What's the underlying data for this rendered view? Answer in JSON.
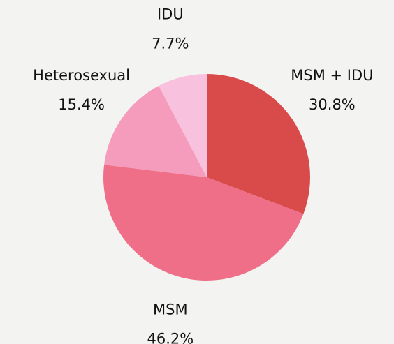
{
  "chart_data": {
    "type": "pie",
    "categories": [
      "MSM + IDU",
      "MSM",
      "Heterosexual",
      "IDU"
    ],
    "values": [
      30.8,
      46.2,
      15.4,
      7.7
    ],
    "value_labels": [
      "30.8%",
      "46.2%",
      "15.4%",
      "7.7%"
    ],
    "colors": [
      "#d94a4a",
      "#ee6f87",
      "#f59bbb",
      "#f8c1de"
    ]
  }
}
